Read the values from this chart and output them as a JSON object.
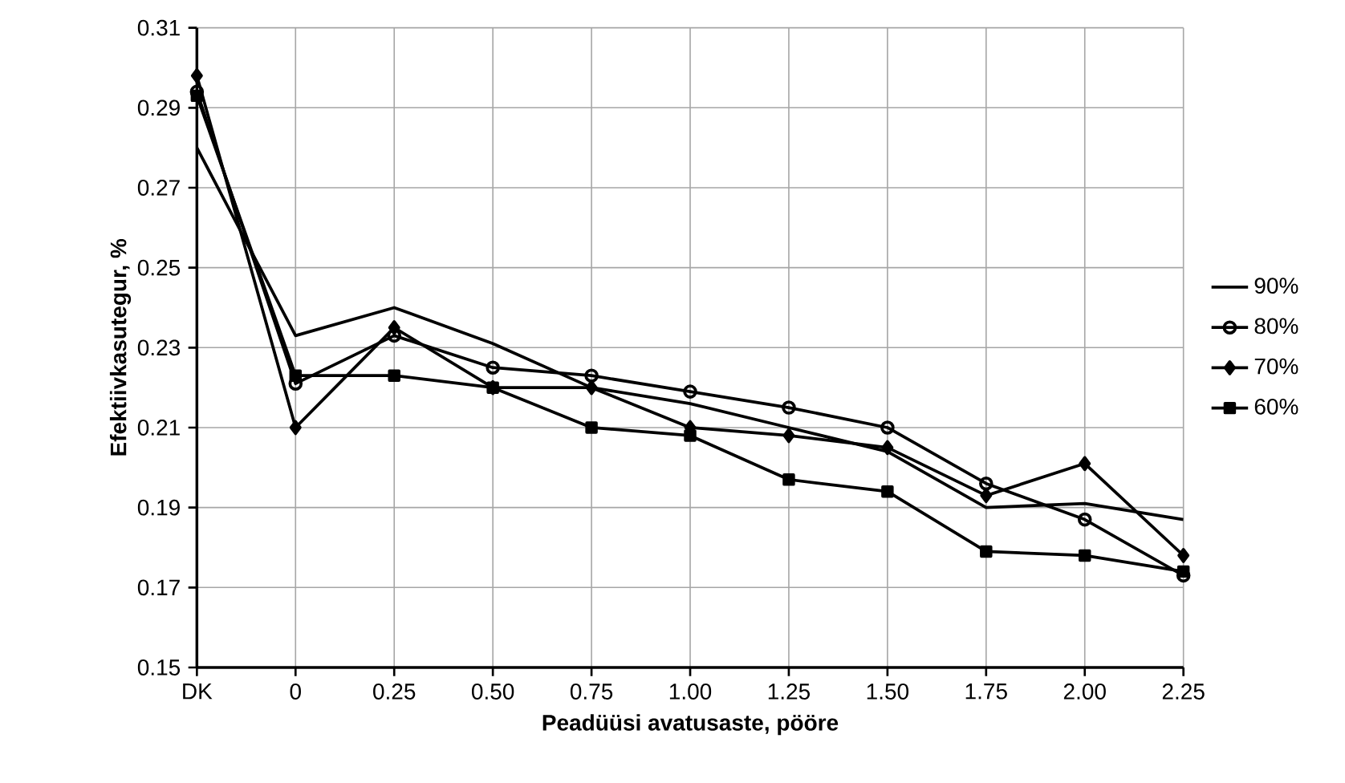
{
  "chart_data": {
    "type": "line",
    "xlabel": "Peadüüsi avatusaste, pööre",
    "ylabel": "Efektiivkasutegur, %",
    "categories": [
      "DK",
      "0",
      "0.25",
      "0.50",
      "0.75",
      "1.00",
      "1.25",
      "1.50",
      "1.75",
      "2.00",
      "2.25"
    ],
    "series": [
      {
        "name": "90%",
        "color": "#000000",
        "marker": "none",
        "values": [
          0.28,
          0.233,
          0.24,
          0.231,
          0.22,
          0.216,
          0.21,
          0.204,
          0.19,
          0.191,
          0.187
        ]
      },
      {
        "name": "80%",
        "color": "#000000",
        "marker": "circle",
        "values": [
          0.294,
          0.221,
          0.233,
          0.225,
          0.223,
          0.219,
          0.215,
          0.21,
          0.196,
          0.187,
          0.173
        ]
      },
      {
        "name": "70%",
        "color": "#000000",
        "marker": "diamond",
        "values": [
          0.298,
          0.21,
          0.235,
          0.22,
          0.22,
          0.21,
          0.208,
          0.205,
          0.193,
          0.201,
          0.178
        ]
      },
      {
        "name": "60%",
        "color": "#000000",
        "marker": "square",
        "values": [
          0.293,
          0.223,
          0.223,
          0.22,
          0.21,
          0.208,
          0.197,
          0.194,
          0.179,
          0.178,
          0.174
        ]
      }
    ],
    "ylim": [
      0.15,
      0.31
    ],
    "yticks": [
      0.15,
      0.17,
      0.19,
      0.21,
      0.23,
      0.25,
      0.27,
      0.29,
      0.31
    ],
    "grid": true,
    "legend": "right",
    "line_style": "solid"
  }
}
